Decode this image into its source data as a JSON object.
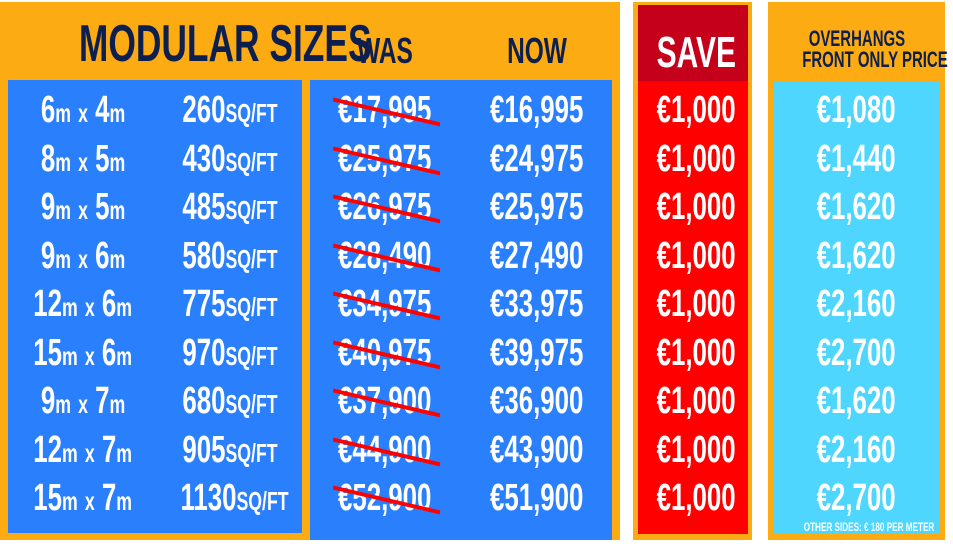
{
  "header": {
    "title": "MODULAR SIZES",
    "was": "WAS",
    "now": "NOW",
    "save": "SAVE",
    "overhangs_line1": "OVERHANGS",
    "overhangs_line2": "FRONT ONLY PRICE"
  },
  "note": "OTHER SIDES: € 180 PER METER",
  "colors": {
    "orange": "#fdab12",
    "blue": "#2a7ffd",
    "red": "#ff0000",
    "dark_red": "#c4001a",
    "cyan": "#4fd6ff",
    "navy": "#0c1f4f"
  },
  "rows": [
    {
      "w": "6",
      "l": "4",
      "area": "260",
      "was": "€17,995",
      "now": "€16,995",
      "save": "€1,000",
      "overhang": "€1,080"
    },
    {
      "w": "8",
      "l": "5",
      "area": "430",
      "was": "€25,975",
      "now": "€24,975",
      "save": "€1,000",
      "overhang": "€1,440"
    },
    {
      "w": "9",
      "l": "5",
      "area": "485",
      "was": "€26,975",
      "now": "€25,975",
      "save": "€1,000",
      "overhang": "€1,620"
    },
    {
      "w": "9",
      "l": "6",
      "area": "580",
      "was": "€28,490",
      "now": "€27,490",
      "save": "€1,000",
      "overhang": "€1,620"
    },
    {
      "w": "12",
      "l": "6",
      "area": "775",
      "was": "€34,975",
      "now": "€33,975",
      "save": "€1,000",
      "overhang": "€2,160"
    },
    {
      "w": "15",
      "l": "6",
      "area": "970",
      "was": "€40,975",
      "now": "€39,975",
      "save": "€1,000",
      "overhang": "€2,700"
    },
    {
      "w": "9",
      "l": "7",
      "area": "680",
      "was": "€37,900",
      "now": "€36,900",
      "save": "€1,000",
      "overhang": "€1,620"
    },
    {
      "w": "12",
      "l": "7",
      "area": "905",
      "was": "€44,900",
      "now": "€43,900",
      "save": "€1,000",
      "overhang": "€2,160"
    },
    {
      "w": "15",
      "l": "7",
      "area": "1130",
      "was": "€52,900",
      "now": "€51,900",
      "save": "€1,000",
      "overhang": "€2,700"
    }
  ],
  "units": {
    "m": "m",
    "x": "x",
    "sqft": "SQ/FT"
  }
}
